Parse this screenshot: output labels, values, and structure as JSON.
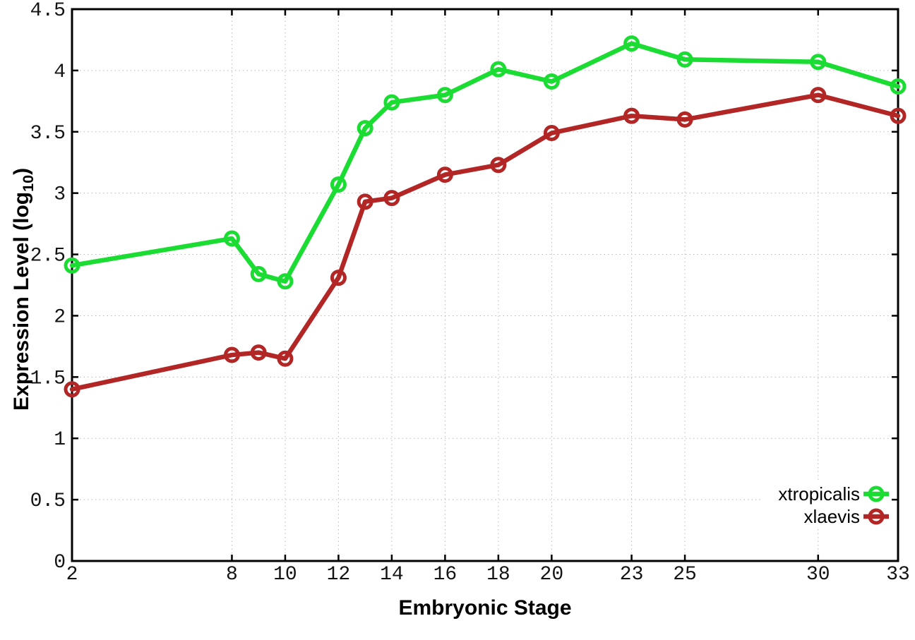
{
  "chart_data": {
    "type": "line",
    "title": "",
    "xlabel": "Embryonic Stage",
    "ylabel": {
      "prefix": "Expression Level (log",
      "sub": "10",
      "suffix": ")"
    },
    "x": [
      2,
      8,
      9,
      10,
      12,
      13,
      14,
      16,
      18,
      20,
      23,
      25,
      30,
      33
    ],
    "series": [
      {
        "name": "xtropicalis",
        "color": "#1bdc32",
        "values": [
          2.41,
          2.63,
          2.34,
          2.28,
          3.07,
          3.53,
          3.74,
          3.8,
          4.01,
          3.91,
          4.22,
          4.09,
          4.07,
          3.87
        ]
      },
      {
        "name": "xlaevis",
        "color": "#b22626",
        "values": [
          1.4,
          1.68,
          1.7,
          1.65,
          2.31,
          2.93,
          2.96,
          3.15,
          3.23,
          3.49,
          3.63,
          3.6,
          3.8,
          3.63
        ]
      }
    ],
    "xlim": [
      2,
      33
    ],
    "ylim": [
      0,
      4.5
    ],
    "xticks": [
      2,
      8,
      10,
      12,
      14,
      16,
      18,
      20,
      23,
      25,
      30,
      33
    ],
    "xtick_labels": [
      "2",
      "8",
      "10",
      "12",
      "14",
      "16",
      "18",
      "20",
      "23",
      "25",
      "30",
      "33"
    ],
    "yticks": [
      0,
      0.5,
      1,
      1.5,
      2,
      2.5,
      3,
      3.5,
      4,
      4.5
    ],
    "ytick_labels": [
      "0",
      "0.5",
      "1",
      "1.5",
      "2",
      "2.5",
      "3",
      "3.5",
      "4",
      "4.5"
    ],
    "grid": true,
    "legend_position": "bottom-right",
    "marker": "open-circle",
    "grid_color": "#b9b9b9",
    "axis_color": "#000000"
  }
}
